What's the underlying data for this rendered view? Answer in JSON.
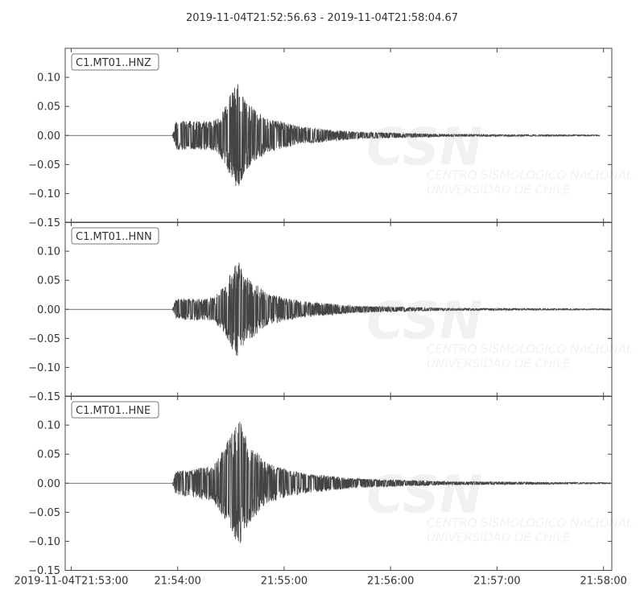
{
  "chart_data": {
    "type": "line",
    "title": "2019-11-04T21:52:56.63  -  2019-11-04T21:58:04.67",
    "start_time": "21:52:56.63",
    "end_time": "21:58:04.67",
    "ylim": [
      -0.15,
      0.15
    ],
    "yticks": [
      "0.10",
      "0.05",
      "0.00",
      "−0.05",
      "−0.10",
      "−0.15"
    ],
    "ytick_values": [
      0.1,
      0.05,
      0.0,
      -0.05,
      -0.1,
      -0.15
    ],
    "xticks": [
      "2019-11-04T21:53:00",
      "21:54:00",
      "21:55:00",
      "21:56:00",
      "21:57:00",
      "21:58:00"
    ],
    "xtick_values": [
      "21:53:00",
      "21:54:00",
      "21:55:00",
      "21:56:00",
      "21:57:00",
      "21:58:00"
    ],
    "grid": false,
    "line_color": "#444444",
    "watermark": "CSN CENTRO SISMOLÓGICO NACIONAL UNIVERSIDAD DE CHILE",
    "series": [
      {
        "name": "C1.MT01..HNZ",
        "trace_end": "21:57:58",
        "envelope": [
          [
            "21:53:57",
            0
          ],
          [
            "21:53:59",
            0.025
          ],
          [
            "21:54:20",
            0.025
          ],
          [
            "21:54:26",
            0.045
          ],
          [
            "21:54:31",
            0.08
          ],
          [
            "21:54:34",
            0.097
          ],
          [
            "21:54:38",
            0.06
          ],
          [
            "21:54:50",
            0.03
          ],
          [
            "21:55:10",
            0.015
          ],
          [
            "21:55:40",
            0.006
          ],
          [
            "21:56:30",
            0.002
          ],
          [
            "21:57:58",
            0.001
          ]
        ]
      },
      {
        "name": "C1.MT01..HNN",
        "trace_end": "21:58:04",
        "envelope": [
          [
            "21:53:57",
            0
          ],
          [
            "21:53:59",
            0.018
          ],
          [
            "21:54:20",
            0.02
          ],
          [
            "21:54:26",
            0.04
          ],
          [
            "21:54:31",
            0.07
          ],
          [
            "21:54:34",
            0.085
          ],
          [
            "21:54:38",
            0.06
          ],
          [
            "21:54:50",
            0.028
          ],
          [
            "21:55:10",
            0.014
          ],
          [
            "21:55:40",
            0.006
          ],
          [
            "21:56:30",
            0.002
          ],
          [
            "21:58:04",
            0.001
          ]
        ]
      },
      {
        "name": "C1.MT01..HNE",
        "trace_end": "21:58:04",
        "envelope": [
          [
            "21:53:57",
            0
          ],
          [
            "21:53:59",
            0.02
          ],
          [
            "21:54:20",
            0.03
          ],
          [
            "21:54:26",
            0.06
          ],
          [
            "21:54:31",
            0.09
          ],
          [
            "21:54:35",
            0.108
          ],
          [
            "21:54:40",
            0.07
          ],
          [
            "21:54:50",
            0.035
          ],
          [
            "21:55:10",
            0.018
          ],
          [
            "21:55:40",
            0.008
          ],
          [
            "21:56:30",
            0.003
          ],
          [
            "21:58:04",
            0.001
          ]
        ]
      }
    ]
  }
}
